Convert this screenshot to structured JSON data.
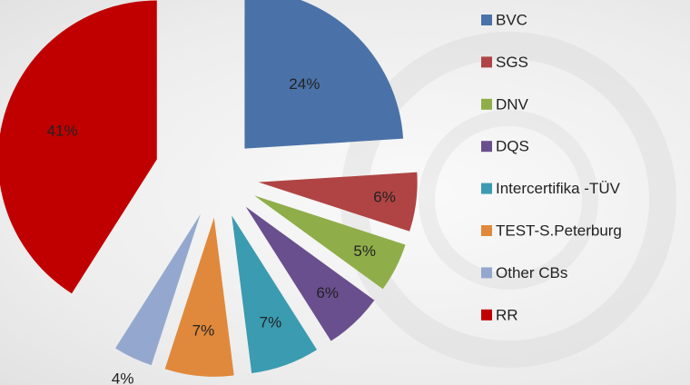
{
  "chart_data": {
    "type": "pie",
    "categories": [
      "BVC",
      "SGS",
      "DNV",
      "DQS",
      "Intercertifika -TÜV",
      "TEST-S.Peterburg",
      "Other CBs",
      "RR"
    ],
    "values": [
      24,
      6,
      5,
      6,
      7,
      7,
      4,
      41
    ],
    "value_labels": [
      "24%",
      "6%",
      "5%",
      "6%",
      "7%",
      "7%",
      "4%",
      "41%"
    ],
    "colors": [
      "#4a72a8",
      "#b04444",
      "#8fae4a",
      "#6a4f8e",
      "#3b9bb0",
      "#e0893c",
      "#94a8cf",
      "#c00000"
    ],
    "legend": "right"
  }
}
